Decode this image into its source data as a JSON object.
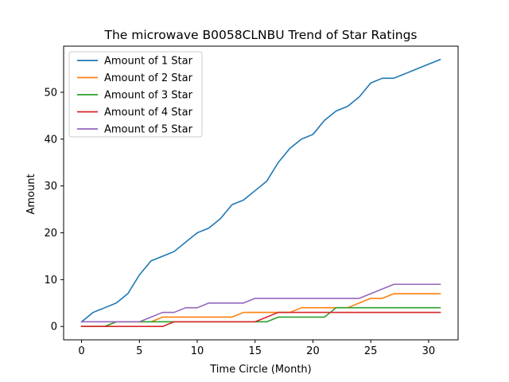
{
  "chart_data": {
    "type": "line",
    "title": "The microwave B0058CLNBU Trend of Star Ratings",
    "xlabel": "Time Circle (Month)",
    "ylabel": "Amount",
    "xlim": [
      -1.55,
      32.55
    ],
    "ylim": [
      -2.85,
      59.85
    ],
    "xticks": [
      "0",
      "5",
      "10",
      "15",
      "20",
      "25",
      "30"
    ],
    "yticks": [
      "0",
      "10",
      "20",
      "30",
      "40",
      "50"
    ],
    "grid": false,
    "legend_position": "top-left",
    "x": [
      0,
      1,
      2,
      3,
      4,
      5,
      6,
      7,
      8,
      9,
      10,
      11,
      12,
      13,
      14,
      15,
      16,
      17,
      18,
      19,
      20,
      21,
      22,
      23,
      24,
      25,
      26,
      27,
      28,
      29,
      30,
      31
    ],
    "series": [
      {
        "name": "Amount of 1 Star",
        "color": "#1f77b4",
        "values": [
          1,
          3,
          4,
          5,
          7,
          11,
          14,
          15,
          16,
          18,
          20,
          21,
          23,
          26,
          27,
          29,
          31,
          35,
          38,
          40,
          41,
          44,
          46,
          47,
          49,
          52,
          53,
          53,
          54,
          55,
          56,
          57
        ]
      },
      {
        "name": "Amount of 2 Star",
        "color": "#ff7f0e",
        "values": [
          0,
          0,
          0,
          1,
          1,
          1,
          1,
          2,
          2,
          2,
          2,
          2,
          2,
          2,
          3,
          3,
          3,
          3,
          3,
          4,
          4,
          4,
          4,
          4,
          5,
          6,
          6,
          7,
          7,
          7,
          7,
          7
        ]
      },
      {
        "name": "Amount of 3 Star",
        "color": "#2ca02c",
        "values": [
          0,
          0,
          0,
          1,
          1,
          1,
          1,
          1,
          1,
          1,
          1,
          1,
          1,
          1,
          1,
          1,
          1,
          2,
          2,
          2,
          2,
          2,
          4,
          4,
          4,
          4,
          4,
          4,
          4,
          4,
          4,
          4
        ]
      },
      {
        "name": "Amount of 4 Star",
        "color": "#d62728",
        "values": [
          0,
          0,
          0,
          0,
          0,
          0,
          0,
          0,
          1,
          1,
          1,
          1,
          1,
          1,
          1,
          1,
          2,
          3,
          3,
          3,
          3,
          3,
          3,
          3,
          3,
          3,
          3,
          3,
          3,
          3,
          3,
          3
        ]
      },
      {
        "name": "Amount of 5 Star",
        "color": "#9467bd",
        "values": [
          1,
          1,
          1,
          1,
          1,
          1,
          2,
          3,
          3,
          4,
          4,
          5,
          5,
          5,
          5,
          6,
          6,
          6,
          6,
          6,
          6,
          6,
          6,
          6,
          6,
          7,
          8,
          9,
          9,
          9,
          9,
          9
        ]
      }
    ]
  }
}
